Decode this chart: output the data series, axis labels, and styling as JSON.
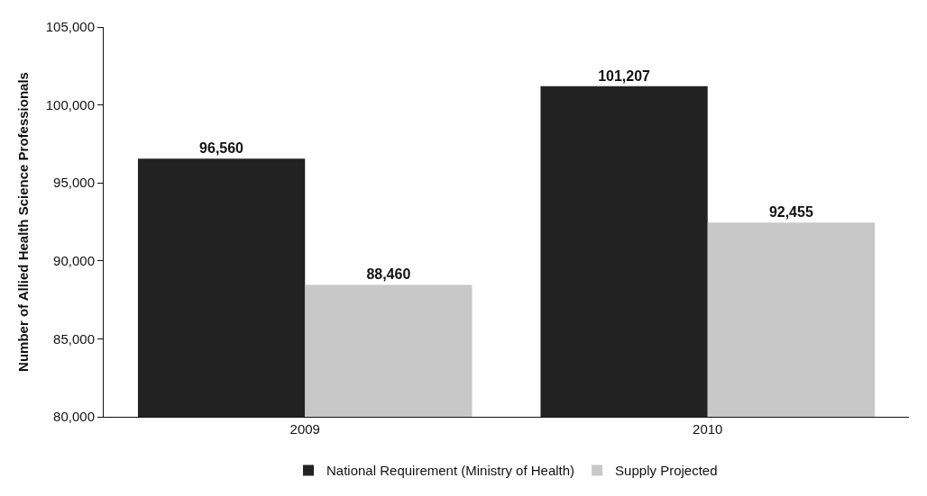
{
  "chart_data": {
    "type": "bar",
    "ylabel": "Number of Allied Health Science Professionals",
    "categories": [
      "2009",
      "2010"
    ],
    "series": [
      {
        "name": "National Requirement (Ministry of Health)",
        "color": "#222222",
        "values": [
          96560,
          101207
        ],
        "value_labels": [
          "96,560",
          "101,207"
        ]
      },
      {
        "name": "Supply Projected",
        "color": "#c8c8c8",
        "values": [
          88460,
          92455
        ],
        "value_labels": [
          "88,460",
          "92,455"
        ]
      }
    ],
    "ylim": [
      80000,
      105000
    ],
    "yticks": [
      {
        "value": 80000,
        "label": "80,000"
      },
      {
        "value": 85000,
        "label": "85,000"
      },
      {
        "value": 90000,
        "label": "90,000"
      },
      {
        "value": 95000,
        "label": "95,000"
      },
      {
        "value": 100000,
        "label": "100,000"
      },
      {
        "value": 105000,
        "label": "105,000"
      }
    ],
    "grid": false,
    "legend": "bottom"
  }
}
